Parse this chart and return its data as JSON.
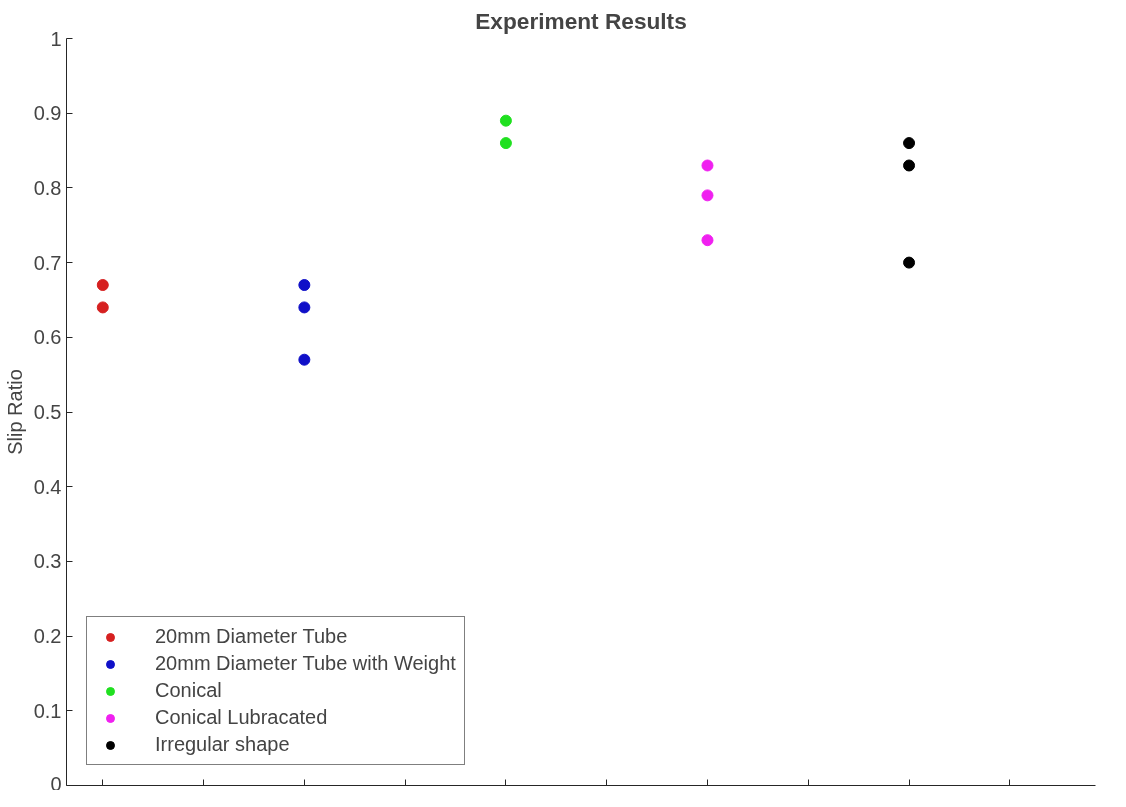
{
  "chart_data": {
    "type": "scatter",
    "title": "Experiment Results",
    "ylabel": "Slip Ratio",
    "categories": [
      null,
      null,
      null,
      null,
      null,
      null,
      null,
      null,
      null,
      null
    ],
    "series": [
      {
        "name": "20mm Diameter Tube",
        "color": "#d62020",
        "values": [
          0.67,
          null,
          null,
          null,
          null,
          null,
          null,
          null,
          null,
          null
        ]
      },
      {
        "color": "#d62020",
        "values": [
          0.64,
          null,
          null,
          null,
          null,
          null,
          null,
          null,
          null,
          null
        ]
      },
      {
        "name": "20mm Diameter Tube with Weight",
        "color": "#1010c8",
        "values": [
          null,
          null,
          0.67,
          null,
          null,
          null,
          null,
          null,
          null,
          null
        ]
      },
      {
        "color": "#1010c8",
        "values": [
          null,
          null,
          0.64,
          null,
          null,
          null,
          null,
          null,
          null,
          null
        ]
      },
      {
        "color": "#1010c8",
        "values": [
          null,
          null,
          0.57,
          null,
          null,
          null,
          null,
          null,
          null,
          null
        ]
      },
      {
        "name": "Conical",
        "color": "#20e020",
        "values": [
          null,
          null,
          null,
          null,
          0.89,
          null,
          null,
          null,
          null,
          null
        ]
      },
      {
        "color": "#20e020",
        "values": [
          null,
          null,
          null,
          null,
          0.86,
          null,
          null,
          null,
          null,
          null
        ]
      },
      {
        "name": "Conical Lubracated",
        "color": "#f020f0",
        "values": [
          null,
          null,
          null,
          null,
          null,
          null,
          0.83,
          null,
          null,
          null
        ]
      },
      {
        "color": "#f020f0",
        "values": [
          null,
          null,
          null,
          null,
          null,
          null,
          0.79,
          null,
          null,
          null
        ]
      },
      {
        "color": "#f020f0",
        "values": [
          null,
          null,
          null,
          null,
          null,
          null,
          0.73,
          null,
          null,
          null
        ]
      },
      {
        "name": "Irregular shape",
        "color": "#000000",
        "values": [
          null,
          null,
          null,
          null,
          null,
          null,
          null,
          null,
          0.86,
          null
        ]
      },
      {
        "color": "#000000",
        "values": [
          null,
          null,
          null,
          null,
          null,
          null,
          null,
          null,
          0.83,
          null
        ]
      },
      {
        "color": "#000000",
        "values": [
          null,
          null,
          null,
          null,
          null,
          null,
          null,
          null,
          0.7,
          null
        ]
      }
    ],
    "ylim": [
      0,
      1
    ],
    "yticks": [
      0,
      0.1,
      0.2,
      0.3,
      0.4,
      0.5,
      0.6,
      0.7,
      0.8,
      0.9,
      1
    ],
    "grid": false,
    "legend": "bottom left",
    "marker": "circle"
  }
}
